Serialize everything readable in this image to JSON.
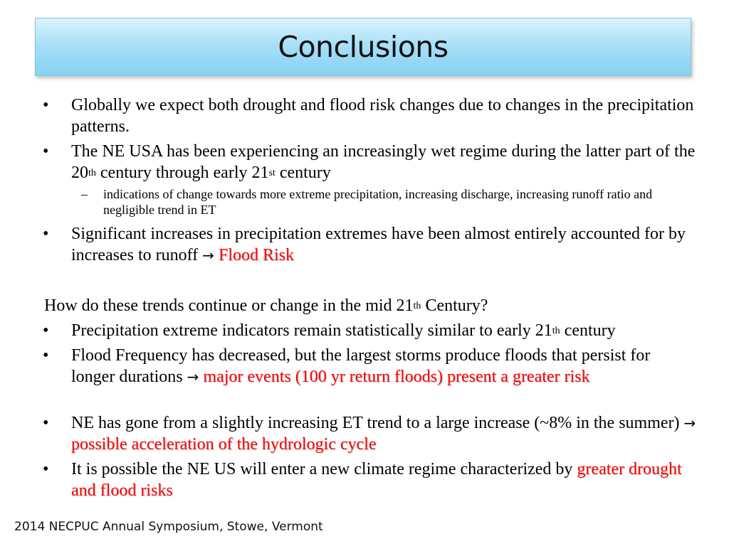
{
  "title": "Conclusions",
  "bullets_top": [
    {
      "text": "Globally we expect both drought and flood risk changes due to changes in the precipitation patterns."
    },
    {
      "a": "The NE USA has been experiencing an increasingly wet regime during the latter part of the 20",
      "sup1": "th",
      "b": " century through early 21",
      "sup2": "st",
      "c": " century"
    },
    {
      "sub": "indications of change towards more extreme precipitation, increasing discharge, increasing runoff ratio and negligible trend in ET"
    },
    {
      "text": "Significant increases in precipitation extremes have been almost entirely accounted for by increases to runoff ",
      "arrow": "→",
      "highlight": "Flood Risk"
    }
  ],
  "question": {
    "a": "How do these trends continue or change in the mid 21",
    "sup": "th",
    "b": " Century?"
  },
  "bullets_bottom": [
    {
      "a": "Precipitation extreme indicators remain statistically similar to early 21",
      "sup": "th",
      "b": " century"
    },
    {
      "text": "Flood Frequency has decreased, but the largest storms produce floods that persist for longer durations ",
      "arrow": "→",
      "highlight": "major events (100 yr return floods) present a greater risk"
    },
    {
      "text": "NE has gone from a slightly increasing ET trend to a large increase (~8% in the summer) ",
      "arrow": "→",
      "highlight": "possible acceleration of the hydrologic cycle"
    },
    {
      "text": "It is possible the NE US will enter a new climate regime characterized by ",
      "highlight": "greater drought and flood risks"
    }
  ],
  "bullet_char": "•",
  "dash_char": "–",
  "footer": "2014 NECPUC Annual Symposium, Stowe, Vermont",
  "colors": {
    "highlight": "#ff0000",
    "title_bg": "#a9e0f7"
  }
}
